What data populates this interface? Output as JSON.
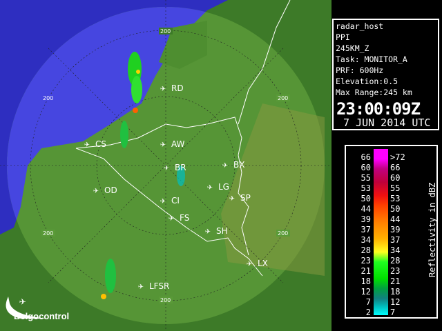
{
  "map": {
    "logo": "Belgocontrol",
    "range_ring_label": "200",
    "stations": [
      {
        "code": "RD"
      },
      {
        "code": "CS"
      },
      {
        "code": "AW"
      },
      {
        "code": "BR"
      },
      {
        "code": "BX"
      },
      {
        "code": "LG"
      },
      {
        "code": "SP"
      },
      {
        "code": "OD"
      },
      {
        "code": "CI"
      },
      {
        "code": "FS"
      },
      {
        "code": "SH"
      },
      {
        "code": "LX"
      },
      {
        "code": "LFSR"
      }
    ],
    "colors": {
      "sea": "#3a3ad0",
      "land_outside": "#3d7a28",
      "land_inside": "#5a9a38",
      "borders": "#ffffff"
    }
  },
  "info": {
    "host": "radar_host",
    "product": "PPI",
    "product_name": "245KM_Z",
    "task": "Task: MONITOR_A",
    "prf": "PRF: 600Hz",
    "elevation": "Elevation:0.5",
    "max_range": "Max Range:245 km",
    "time": "23:00:09Z",
    "date": "7 JUN 2014 UTC"
  },
  "legend": {
    "unit": "Reflectivity in dBZ",
    "left": [
      "66",
      "60",
      "55",
      "53",
      "50",
      "44",
      "39",
      "37",
      "34",
      "28",
      "23",
      "21",
      "18",
      "12",
      "7",
      "2"
    ],
    "right": [
      ">72",
      "66",
      "60",
      "55",
      "53",
      "50",
      "44",
      "39",
      "37",
      "34",
      "28",
      "23",
      "21",
      "18",
      "12",
      "7"
    ]
  }
}
